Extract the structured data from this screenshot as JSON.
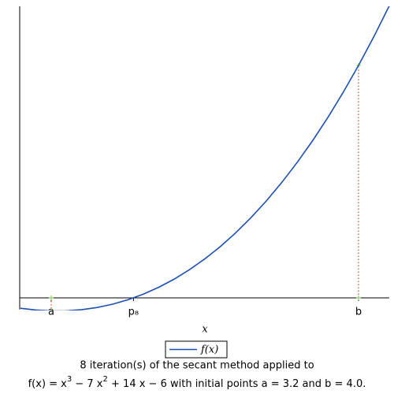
{
  "chart_data": {
    "type": "line",
    "xlabel": "x",
    "title": "8 iteration(s) of the secant method applied to",
    "subtitle": [
      "f(x) = x",
      "3",
      " − 7 x",
      "2",
      " + 14 x − 6 with initial points a = 3.2 and b = 4.0."
    ],
    "x": [
      3.12,
      3.16,
      3.2,
      3.24,
      3.28,
      3.32,
      3.36,
      3.4,
      3.44,
      3.48,
      3.52,
      3.56,
      3.6,
      3.64,
      3.68,
      3.72,
      3.76,
      3.8,
      3.84,
      3.88,
      3.92,
      3.96,
      4.0,
      4.04,
      4.08
    ],
    "series": [
      {
        "name": "f(x)",
        "color": "#1c4fb4",
        "values": [
          -0.0895,
          -0.1047,
          -0.112,
          -0.111,
          -0.101,
          -0.0824,
          -0.0541,
          -0.016,
          0.0324,
          0.0914,
          0.161,
          0.243,
          0.336,
          0.441,
          0.559,
          0.69,
          0.834,
          0.992,
          1.164,
          1.35,
          1.551,
          1.768,
          2.0,
          2.248,
          2.513
        ]
      }
    ],
    "secant_points": {
      "x": [
        3.2,
        4.0
      ],
      "y": [
        -0.112,
        2.0
      ],
      "color": "#8fd16f",
      "line_color": "#e8402a"
    },
    "xlim": [
      3.118,
      4.08
    ],
    "ylim": [
      -0.1,
      2.5
    ],
    "xticks": [
      {
        "value": 3.2,
        "label": "a"
      },
      {
        "value": 3.4142,
        "label": "p₈"
      },
      {
        "value": 4.0,
        "label": "b"
      }
    ]
  }
}
